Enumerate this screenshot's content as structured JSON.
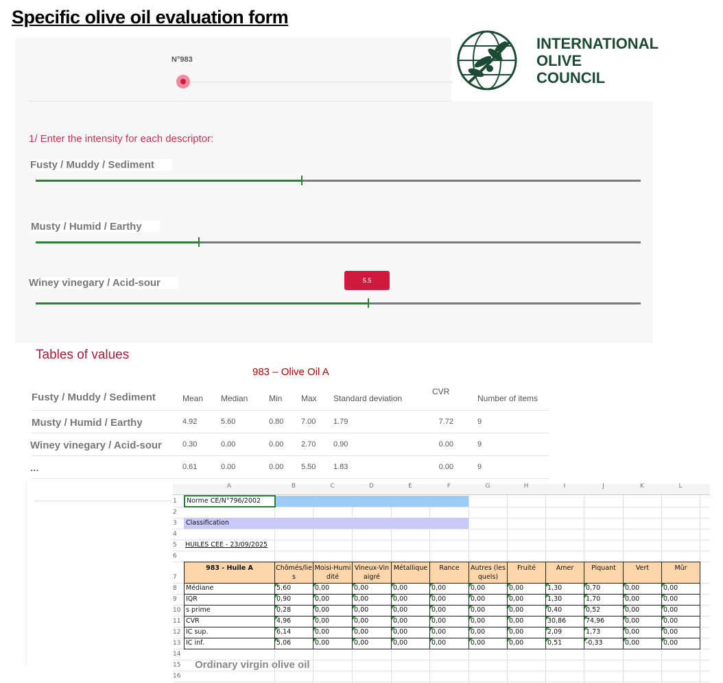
{
  "header": {
    "title": "Specific olive oil evaluation form"
  },
  "logo": {
    "lines": [
      "INTERNATIONAL",
      "OLIVE",
      "COUNCIL"
    ]
  },
  "sample": {
    "label": "N°983"
  },
  "instructions": "1/ Enter the intensity for each descriptor:",
  "slider_scale": [
    0,
    10
  ],
  "descriptors": [
    {
      "name": "Fusty / Muddy / Sediment",
      "value": 4.4
    },
    {
      "name": "Musty / Humid / Earthy",
      "value": 2.7
    },
    {
      "name": "Winey vinegary / Acid-sour",
      "value": 5.5
    }
  ],
  "tables_title": "Tables of values",
  "table": {
    "title": "983 – Olive Oil A",
    "corner": "Fusty / Muddy / Sediment",
    "columns": [
      "Mean",
      "Median",
      "Min",
      "Max",
      "Standard deviation",
      "CVR",
      "Number of items"
    ],
    "rows": [
      [
        "Musty / Humid / Earthy",
        "4.92",
        "5.60",
        "0.80",
        "7.00",
        "1.79",
        "7.72",
        "9"
      ],
      [
        "Winey vinegary / Acid-sour",
        "0.30",
        "0.00",
        "0.00",
        "2.70",
        "0.90",
        "0.00",
        "9"
      ],
      [
        "...",
        "0.61",
        "0.00",
        "0.00",
        "5.50",
        "1.83",
        "0.00",
        "9"
      ]
    ]
  },
  "spreadsheet": {
    "column_letters": [
      "A",
      "B",
      "C",
      "D",
      "E",
      "F",
      "G",
      "H",
      "I",
      "J",
      "K",
      "L"
    ],
    "row_numbers": [
      "1",
      "2",
      "3",
      "4",
      "5",
      "6",
      "7",
      "8",
      "9",
      "10",
      "11",
      "12",
      "13",
      "14",
      "15",
      "16"
    ],
    "norm": "Norme CE/N°796/2002",
    "classification": "Classification",
    "date_line": "HUILES  CEE - 23/09/2025",
    "header": [
      "983 - Huile A",
      "Chômés/lies",
      "Moisi-Humidité",
      "Vineux-Vinaigré",
      "Métallique",
      "Rance",
      "Autres (lesquels)",
      "Fruité",
      "Amer",
      "Piquant",
      "Vert",
      "Mûr"
    ],
    "rows": [
      [
        "Médiane",
        "5,60",
        "0,00",
        "0,00",
        "0,00",
        "0,00",
        "0,00",
        "0,00",
        "1,30",
        "0,70",
        "0,00",
        "0,00"
      ],
      [
        "IQR",
        "0,90",
        "0,00",
        "0,00",
        "0,00",
        "0,00",
        "0,00",
        "0,00",
        "1,30",
        "1,70",
        "0,00",
        "0,00"
      ],
      [
        "s prime",
        "0,28",
        "0,00",
        "0,00",
        "0,00",
        "0,00",
        "0,00",
        "0,00",
        "0,40",
        "0,52",
        "0,00",
        "0,00"
      ],
      [
        "CVR",
        "4,96",
        "0,00",
        "0,00",
        "0,00",
        "0,00",
        "0,00",
        "0,00",
        "30,86",
        "74,96",
        "0,00",
        "0,00"
      ],
      [
        "IC sup.",
        "6,14",
        "0,00",
        "0,00",
        "0,00",
        "0,00",
        "0,00",
        "0,00",
        "2,09",
        "1,73",
        "0,00",
        "0,00"
      ],
      [
        "IC inf.",
        "5,06",
        "0,00",
        "0,00",
        "0,00",
        "0,00",
        "0,00",
        "0,00",
        "0,51",
        "-0,33",
        "0,00",
        "0,00"
      ]
    ],
    "footer": "Ordinary virgin olive oil"
  }
}
